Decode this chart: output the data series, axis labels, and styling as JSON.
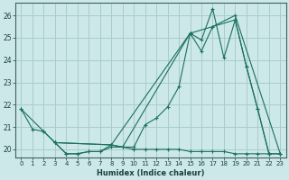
{
  "xlabel": "Humidex (Indice chaleur)",
  "bg_color": "#cce8e8",
  "grid_color": "#aacccc",
  "line_color": "#1a7060",
  "xlim": [
    -0.5,
    23.5
  ],
  "ylim": [
    19.65,
    26.55
  ],
  "yticks": [
    20,
    21,
    22,
    23,
    24,
    25,
    26
  ],
  "xticks": [
    0,
    1,
    2,
    3,
    4,
    5,
    6,
    7,
    8,
    9,
    10,
    11,
    12,
    13,
    14,
    15,
    16,
    17,
    18,
    19,
    20,
    21,
    22,
    23
  ],
  "series1_x": [
    0,
    1,
    2,
    3,
    4,
    5,
    6,
    7,
    8,
    9,
    10,
    11,
    12,
    13,
    14,
    15,
    16,
    17,
    18,
    19,
    20,
    21,
    22
  ],
  "series1_y": [
    21.8,
    20.9,
    20.8,
    20.3,
    19.8,
    19.8,
    19.9,
    19.9,
    20.2,
    20.1,
    20.1,
    21.1,
    21.4,
    21.9,
    22.8,
    25.2,
    24.9,
    26.3,
    24.1,
    25.8,
    23.7,
    21.8,
    19.8
  ],
  "series2_x": [
    3,
    8,
    15,
    16,
    17,
    19,
    23
  ],
  "series2_y": [
    20.3,
    20.2,
    25.2,
    24.4,
    25.5,
    26.0,
    19.8
  ],
  "series3_x": [
    0,
    2,
    3,
    8,
    9,
    15,
    19,
    20,
    21,
    22,
    23
  ],
  "series3_y": [
    21.8,
    20.8,
    20.3,
    20.2,
    20.1,
    25.2,
    25.8,
    23.7,
    21.8,
    19.8,
    19.8
  ],
  "series4_x": [
    3,
    4,
    5,
    6,
    7,
    8,
    9,
    10,
    11,
    12,
    13,
    14,
    15,
    16,
    17,
    18,
    19,
    20,
    21,
    22,
    23
  ],
  "series4_y": [
    20.3,
    19.8,
    19.8,
    19.9,
    19.9,
    20.1,
    20.1,
    20.0,
    20.0,
    20.0,
    20.0,
    20.0,
    19.9,
    19.9,
    19.9,
    19.9,
    19.8,
    19.8,
    19.8,
    19.8,
    19.8
  ]
}
